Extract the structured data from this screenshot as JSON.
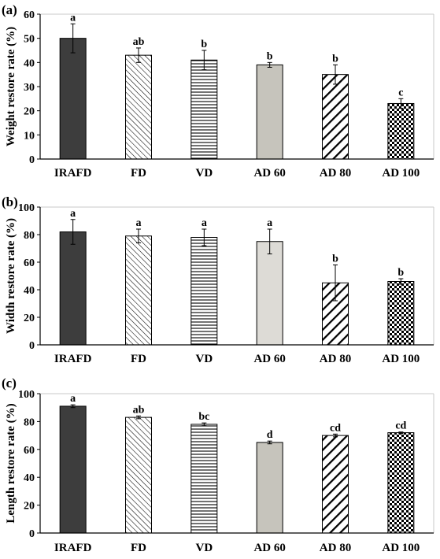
{
  "categories": [
    "IRAFD",
    "FD",
    "VD",
    "AD 60",
    "AD 80",
    "AD 100"
  ],
  "chart_data": [
    {
      "type": "bar",
      "panel": "(a)",
      "ylabel": "Weight restore rate (%)",
      "ylim": [
        0,
        60
      ],
      "yticks": [
        0,
        10,
        20,
        30,
        40,
        50,
        60
      ],
      "values": [
        50,
        43,
        41,
        39,
        35,
        23
      ],
      "errors": [
        6,
        3,
        4,
        1,
        4,
        2
      ],
      "letters": [
        "a",
        "ab",
        "b",
        "b",
        "b",
        "c"
      ]
    },
    {
      "type": "bar",
      "panel": "(b)",
      "ylabel": "Width restore rate (%)",
      "ylim": [
        0,
        100
      ],
      "yticks": [
        0,
        20,
        40,
        60,
        80,
        100
      ],
      "values": [
        82,
        79,
        78,
        75,
        45,
        46
      ],
      "errors": [
        9,
        5,
        6,
        9,
        13,
        2
      ],
      "letters": [
        "a",
        "a",
        "a",
        "a",
        "b",
        "b"
      ]
    },
    {
      "type": "bar",
      "panel": "(c)",
      "ylabel": "Length restore rate (%)",
      "ylim": [
        0,
        100
      ],
      "yticks": [
        0,
        20,
        40,
        60,
        80,
        100
      ],
      "values": [
        91,
        83,
        78,
        65,
        70,
        72
      ],
      "errors": [
        1,
        1,
        1,
        1,
        1,
        0.5
      ],
      "letters": [
        "a",
        "ab",
        "bc",
        "d",
        "cd",
        "cd"
      ]
    }
  ],
  "bar_styles": [
    {
      "name": "IRAFD",
      "fill": "solid",
      "color": "#3d3d3d"
    },
    {
      "name": "FD",
      "fill": "diagonal-thin",
      "color": "#000000"
    },
    {
      "name": "VD",
      "fill": "horizontal-lines",
      "color": "#000000"
    },
    {
      "name": "AD 60",
      "fill": "solid-gray",
      "color": "#c6c4bc"
    },
    {
      "name": "AD 80",
      "fill": "diagonal-thick",
      "color": "#000000"
    },
    {
      "name": "AD 100",
      "fill": "checker",
      "color": "#000000"
    }
  ]
}
